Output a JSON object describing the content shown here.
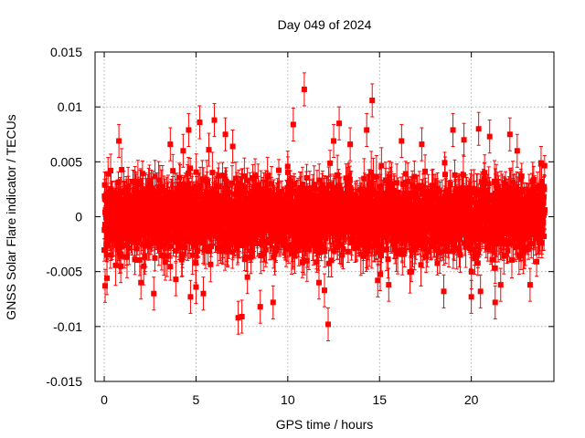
{
  "chart_data": {
    "type": "scatter",
    "title": "Day 049 of 2024",
    "xlabel": "GPS time / hours",
    "ylabel": "GNSS Solar Flare indicator / TECUs",
    "xlim": [
      -0.5,
      24.5
    ],
    "ylim": [
      -0.015,
      0.015
    ],
    "xticks": [
      0,
      5,
      10,
      15,
      20
    ],
    "xtick_labels": [
      "0",
      "5",
      "10",
      "15",
      "20"
    ],
    "yticks": [
      -0.015,
      -0.01,
      -0.005,
      0,
      0.005,
      0.01,
      0.015
    ],
    "ytick_labels": [
      "-0.015",
      "-0.01",
      "-0.005",
      "0",
      "0.005",
      "0.01",
      "0.015"
    ],
    "grid": true,
    "error_bars": true,
    "series_color": "#ff0000",
    "series": [
      {
        "name": "",
        "points": [
          {
            "x": 0.05,
            "y": -0.0063
          },
          {
            "x": 0.15,
            "y": -0.0056
          },
          {
            "x": 0.35,
            "y": 0.0042
          },
          {
            "x": 0.8,
            "y": 0.0069
          },
          {
            "x": 0.9,
            "y": -0.0045
          },
          {
            "x": 2.0,
            "y": -0.006
          },
          {
            "x": 2.7,
            "y": -0.007
          },
          {
            "x": 3.6,
            "y": 0.0066
          },
          {
            "x": 3.9,
            "y": -0.0057
          },
          {
            "x": 4.3,
            "y": 0.006
          },
          {
            "x": 4.6,
            "y": 0.0079
          },
          {
            "x": 4.7,
            "y": -0.0073
          },
          {
            "x": 5.0,
            "y": -0.0064
          },
          {
            "x": 5.2,
            "y": 0.0086
          },
          {
            "x": 5.4,
            "y": -0.007
          },
          {
            "x": 5.7,
            "y": 0.0061
          },
          {
            "x": 6.0,
            "y": 0.0088
          },
          {
            "x": 6.6,
            "y": 0.0075
          },
          {
            "x": 7.0,
            "y": 0.0064
          },
          {
            "x": 7.3,
            "y": -0.0092
          },
          {
            "x": 7.5,
            "y": -0.0091
          },
          {
            "x": 7.8,
            "y": -0.0055
          },
          {
            "x": 8.5,
            "y": -0.0082
          },
          {
            "x": 9.2,
            "y": -0.0078
          },
          {
            "x": 10.3,
            "y": 0.0084
          },
          {
            "x": 10.9,
            "y": 0.0116
          },
          {
            "x": 11.7,
            "y": -0.006
          },
          {
            "x": 12.0,
            "y": -0.0067
          },
          {
            "x": 12.2,
            "y": -0.0098
          },
          {
            "x": 12.5,
            "y": 0.0069
          },
          {
            "x": 12.8,
            "y": 0.0085
          },
          {
            "x": 13.4,
            "y": 0.0066
          },
          {
            "x": 14.3,
            "y": 0.0079
          },
          {
            "x": 14.6,
            "y": 0.0106
          },
          {
            "x": 14.9,
            "y": -0.0058
          },
          {
            "x": 15.5,
            "y": -0.0062
          },
          {
            "x": 16.2,
            "y": 0.0069
          },
          {
            "x": 17.3,
            "y": 0.0066
          },
          {
            "x": 18.5,
            "y": -0.0068
          },
          {
            "x": 19.0,
            "y": 0.0079
          },
          {
            "x": 19.6,
            "y": 0.007
          },
          {
            "x": 20.0,
            "y": -0.0073
          },
          {
            "x": 20.4,
            "y": 0.008
          },
          {
            "x": 20.5,
            "y": -0.0068
          },
          {
            "x": 21.0,
            "y": 0.0073
          },
          {
            "x": 21.3,
            "y": -0.0078
          },
          {
            "x": 21.6,
            "y": -0.0062
          },
          {
            "x": 22.1,
            "y": 0.0075
          },
          {
            "x": 22.5,
            "y": 0.006
          },
          {
            "x": 23.2,
            "y": -0.0062
          },
          {
            "x": 23.8,
            "y": 0.0049
          }
        ],
        "bulk": {
          "x_range": [
            0,
            24
          ],
          "count": 2880,
          "typical_y_range": [
            -0.005,
            0.005
          ],
          "typical_error": 0.0015
        }
      }
    ]
  }
}
